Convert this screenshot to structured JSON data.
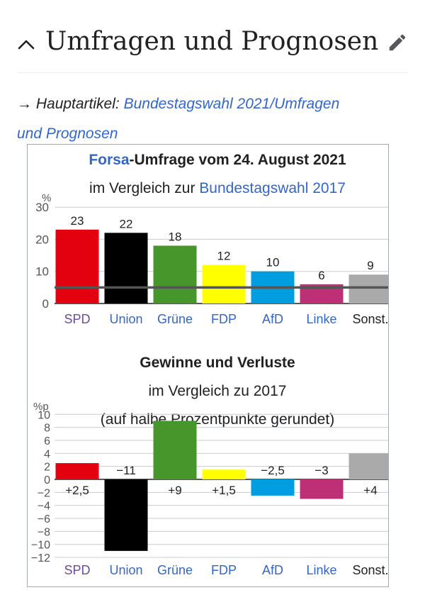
{
  "section": {
    "title": "Umfragen und Prognosen"
  },
  "hatnote": {
    "arrow": "→",
    "prefix": "Hauptartikel:",
    "link_line1": "Bundestagswahl 2021/Umfragen",
    "link_line2": "und Prognosen"
  },
  "chart1": {
    "title_link": "Forsa",
    "title_rest": "-Umfrage vom 24. August 2021",
    "subtitle_prefix": "im Vergleich zur",
    "subtitle_link": "Bundestagswahl 2017"
  },
  "chart2": {
    "title": "Gewinne und Verluste",
    "subtitle": "im Vergleich zu 2017",
    "subtitle2": "(auf halbe Prozentpunkte gerundet)"
  },
  "colors": {
    "link": "#3366cc",
    "SPD": "#e3000f",
    "Union": "#000000",
    "Grüne": "#46962b",
    "FDP": "#ffff00",
    "AfD": "#009ee0",
    "Linke": "#be3075",
    "Sonst.": "#aaaaaa",
    "SPD_label": "#6b4c9a"
  },
  "chart_data": [
    {
      "type": "bar",
      "title": "Forsa-Umfrage vom 24. August 2021",
      "subtitle": "im Vergleich zur Bundestagswahl 2017",
      "ylabel": "%",
      "ylim": [
        0,
        30
      ],
      "yticks": [
        "0",
        "10",
        "20",
        "30"
      ],
      "categories": [
        "SPD",
        "Union",
        "Grüne",
        "FDP",
        "AfD",
        "Linke",
        "Sonst."
      ],
      "values": [
        23,
        22,
        18,
        12,
        10,
        6,
        9
      ],
      "value_labels": [
        "23",
        "22",
        "18",
        "12",
        "10",
        "6",
        "9"
      ],
      "reference_line": 5
    },
    {
      "type": "bar",
      "title": "Gewinne und Verluste",
      "subtitle": "im Vergleich zu 2017 (auf halbe Prozentpunkte gerundet)",
      "ylabel": "%p",
      "ylim": [
        -12,
        10
      ],
      "yticks": [
        "-12",
        "-10",
        "-8",
        "-6",
        "-4",
        "-2",
        "0",
        "2",
        "4",
        "6",
        "8",
        "10"
      ],
      "categories": [
        "SPD",
        "Union",
        "Grüne",
        "FDP",
        "AfD",
        "Linke",
        "Sonst."
      ],
      "values": [
        2.5,
        -11,
        9,
        1.5,
        -2.5,
        -3,
        4
      ],
      "value_labels": [
        "+2,5",
        "−11",
        "+9",
        "+1,5",
        "−2,5",
        "−3",
        "+4"
      ]
    }
  ]
}
